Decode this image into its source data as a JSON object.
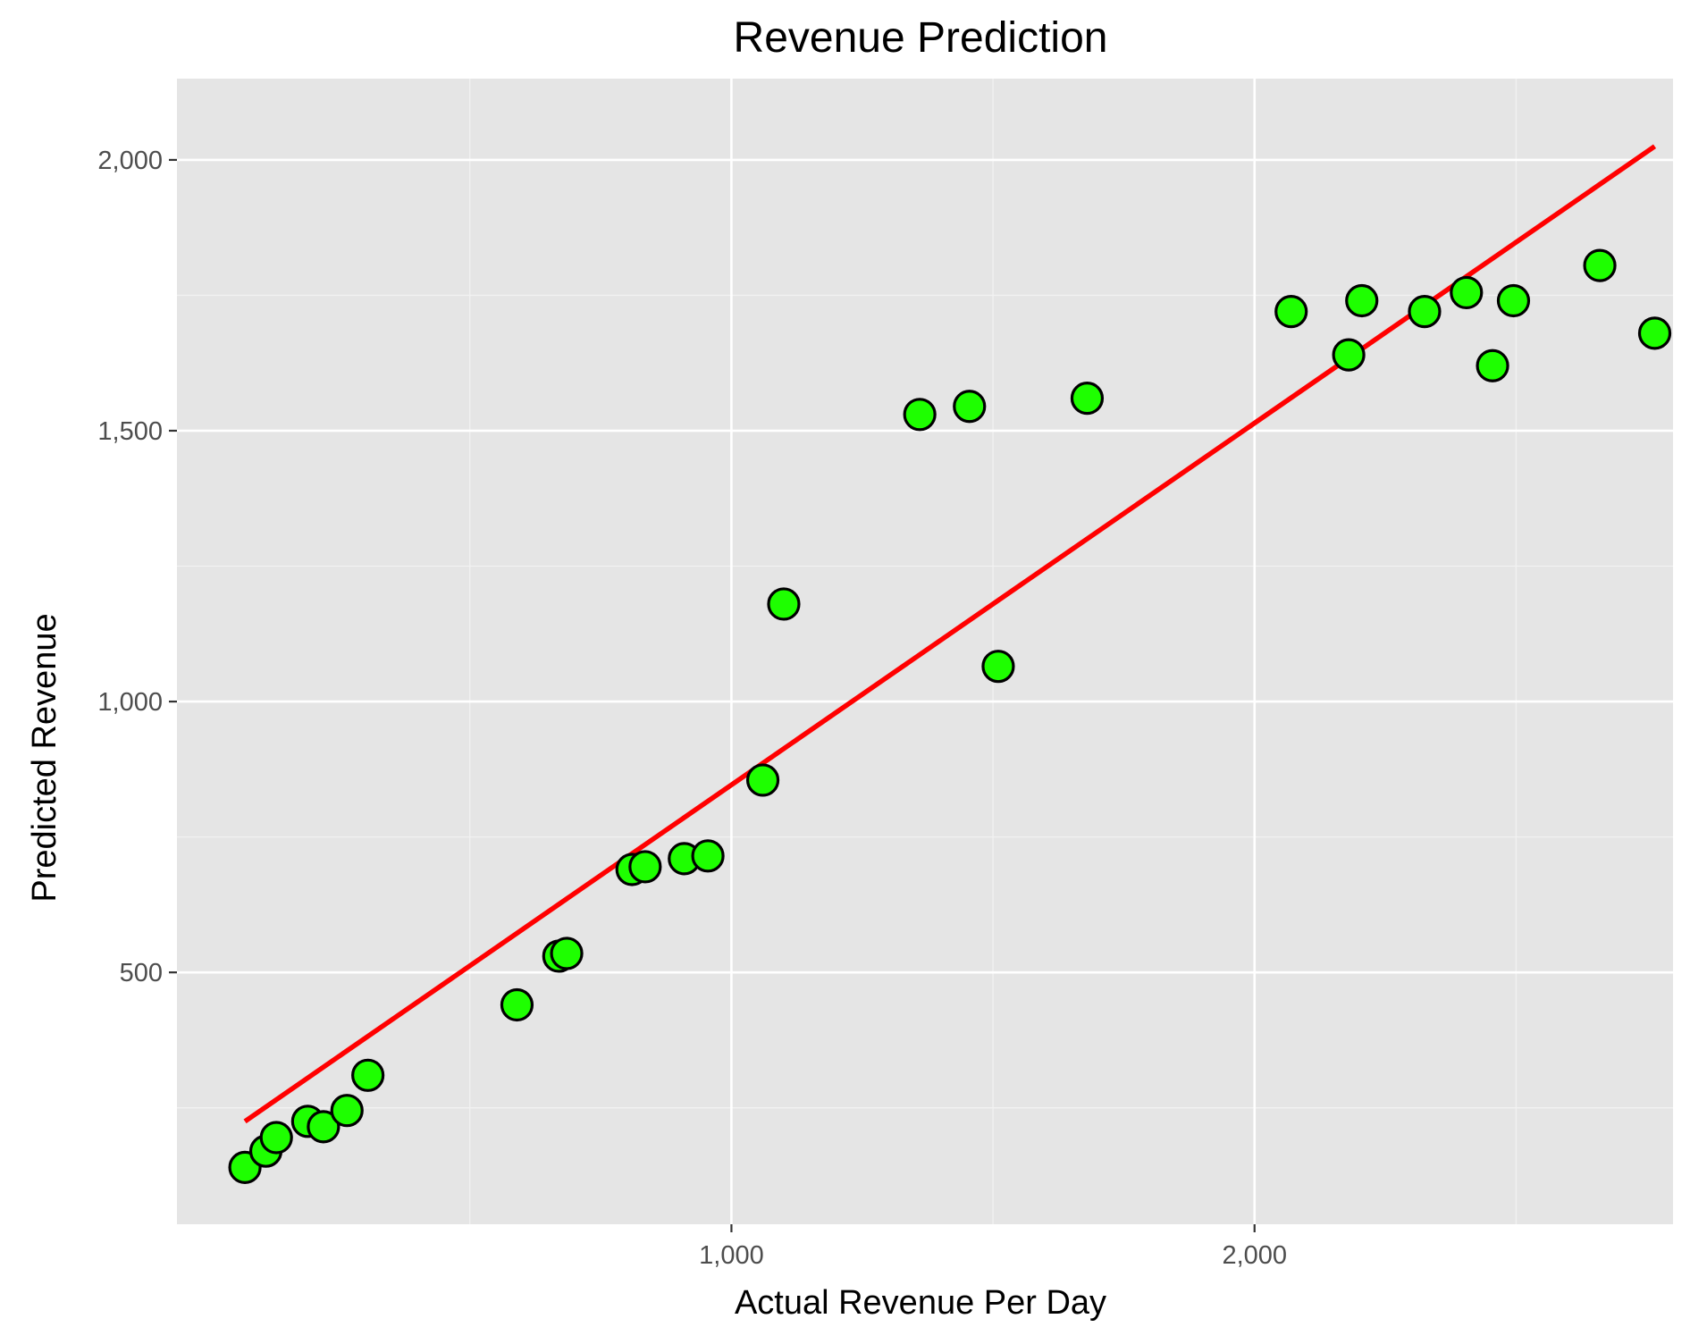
{
  "chart_data": {
    "type": "scatter",
    "title": "Revenue Prediction",
    "xlabel": "Actual Revenue Per Day",
    "ylabel": "Predicted Revenue",
    "xlim": [
      -60,
      2800
    ],
    "ylim": [
      35,
      2150
    ],
    "x_ticks": [
      {
        "value": 1000,
        "label": "1,000"
      },
      {
        "value": 2000,
        "label": "2,000"
      }
    ],
    "y_ticks": [
      {
        "value": 500,
        "label": "500"
      },
      {
        "value": 1000,
        "label": "1,000"
      },
      {
        "value": 1500,
        "label": "1,500"
      },
      {
        "value": 2000,
        "label": "2,000"
      }
    ],
    "x_minor_breaks": [
      500,
      1500,
      2500
    ],
    "y_minor_breaks": [
      250,
      750,
      1250,
      1750
    ],
    "grid": true,
    "colors": {
      "panel_background": "#e5e5e5",
      "grid_major": "#ffffff",
      "grid_minor": "#f2f2f2",
      "point_fill": "#1eff00",
      "point_stroke": "#000000",
      "fit_line": "#ff0000",
      "tick_label": "#4d4d4d",
      "tick_mark": "#333333"
    },
    "points": [
      {
        "x": 70,
        "y": 140
      },
      {
        "x": 110,
        "y": 170
      },
      {
        "x": 130,
        "y": 195
      },
      {
        "x": 190,
        "y": 225
      },
      {
        "x": 220,
        "y": 215
      },
      {
        "x": 265,
        "y": 245
      },
      {
        "x": 305,
        "y": 310
      },
      {
        "x": 590,
        "y": 440
      },
      {
        "x": 670,
        "y": 530
      },
      {
        "x": 685,
        "y": 535
      },
      {
        "x": 810,
        "y": 690
      },
      {
        "x": 835,
        "y": 695
      },
      {
        "x": 910,
        "y": 710
      },
      {
        "x": 955,
        "y": 715
      },
      {
        "x": 1060,
        "y": 855
      },
      {
        "x": 1100,
        "y": 1180
      },
      {
        "x": 1360,
        "y": 1530
      },
      {
        "x": 1455,
        "y": 1545
      },
      {
        "x": 1510,
        "y": 1065
      },
      {
        "x": 1680,
        "y": 1560
      },
      {
        "x": 2070,
        "y": 1720
      },
      {
        "x": 2180,
        "y": 1640
      },
      {
        "x": 2205,
        "y": 1740
      },
      {
        "x": 2325,
        "y": 1720
      },
      {
        "x": 2405,
        "y": 1755
      },
      {
        "x": 2455,
        "y": 1620
      },
      {
        "x": 2495,
        "y": 1740
      },
      {
        "x": 2660,
        "y": 1805
      },
      {
        "x": 2765,
        "y": 1680
      }
    ],
    "fit_line": {
      "x": [
        70,
        2765
      ],
      "y": [
        225,
        2025
      ]
    }
  }
}
